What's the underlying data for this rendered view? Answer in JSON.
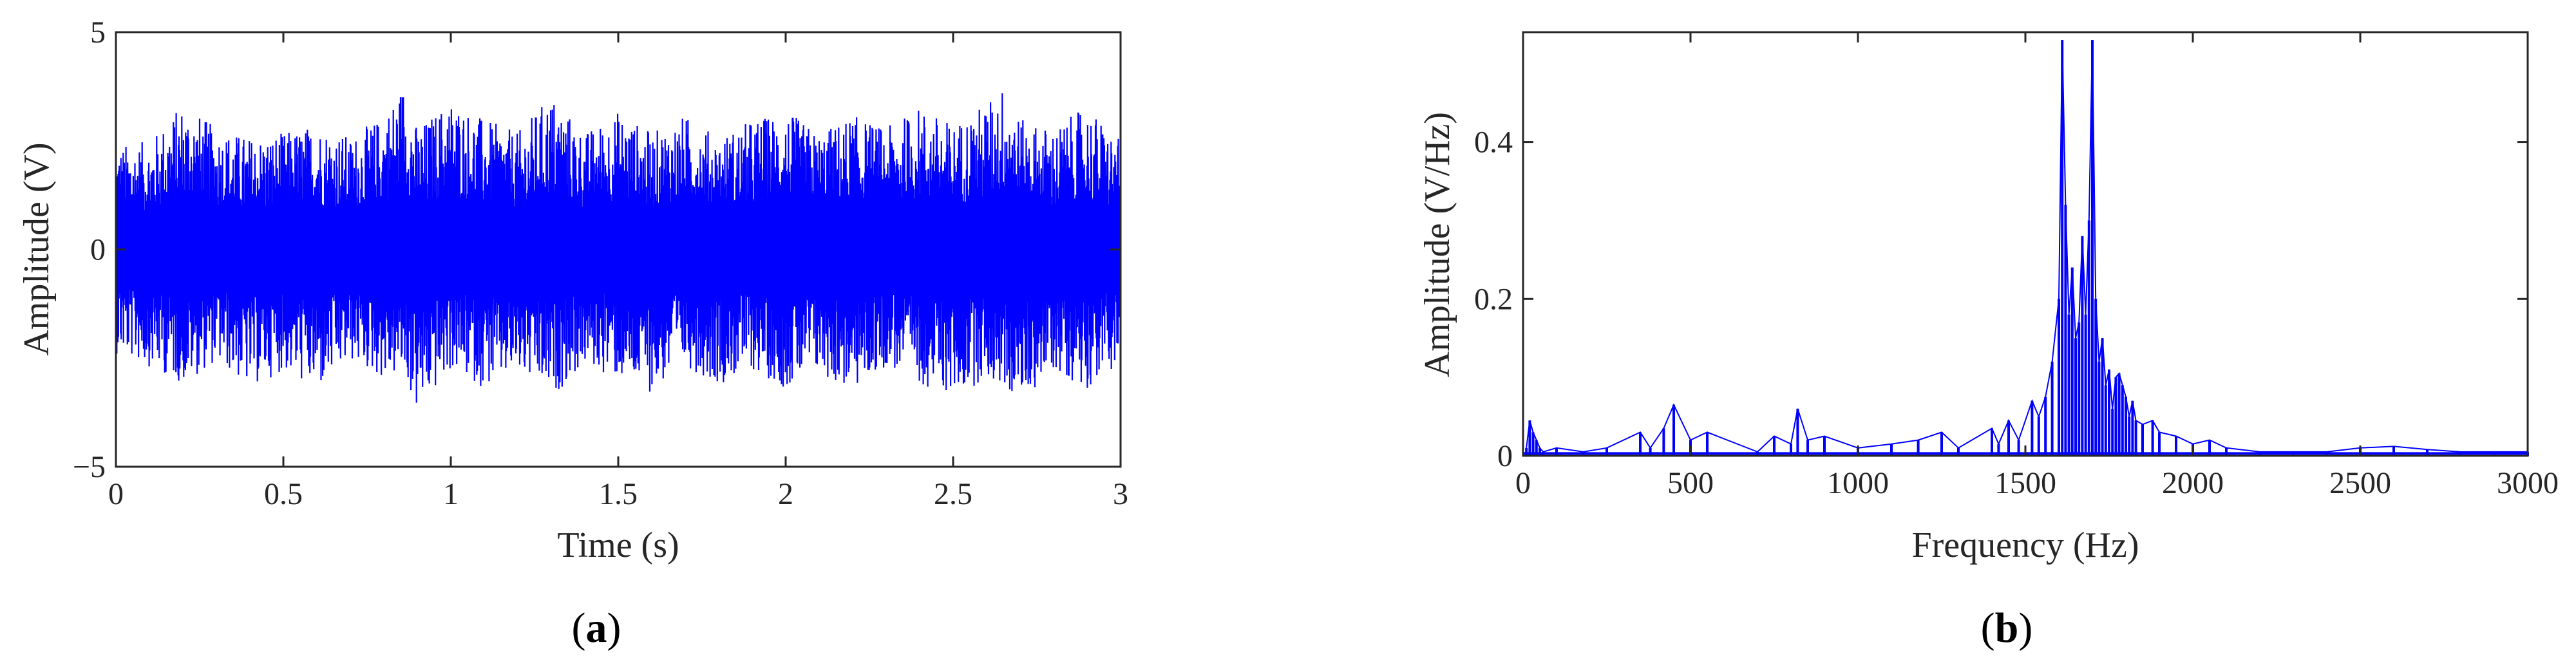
{
  "chart_data": [
    {
      "panel": "(a)",
      "panel_letter": "a",
      "type": "line",
      "xlabel": "Time (s)",
      "ylabel": "Amplitude (V)",
      "xlim": [
        0,
        3
      ],
      "ylim": [
        -5,
        5
      ],
      "xticks": [
        {
          "value": 0,
          "label": "0"
        },
        {
          "value": 0.5,
          "label": "0.5"
        },
        {
          "value": 1,
          "label": "1"
        },
        {
          "value": 1.5,
          "label": "1.5"
        },
        {
          "value": 2,
          "label": "2"
        },
        {
          "value": 2.5,
          "label": "2.5"
        },
        {
          "value": 3,
          "label": "3"
        }
      ],
      "yticks": [
        {
          "value": -5,
          "label": "−5"
        },
        {
          "value": 0,
          "label": "0"
        },
        {
          "value": 5,
          "label": "5"
        }
      ],
      "grid": false,
      "color": "#0000ff",
      "series": [
        {
          "x": [
            0,
            0.1,
            0.2,
            0.3,
            0.4,
            0.5,
            0.6,
            0.7,
            0.8,
            0.86,
            0.9,
            1.0,
            1.1,
            1.2,
            1.3,
            1.4,
            1.5,
            1.6,
            1.7,
            1.8,
            1.9,
            2.0,
            2.1,
            2.2,
            2.3,
            2.4,
            2.5,
            2.6,
            2.66,
            2.7,
            2.8,
            2.9,
            3.0
          ],
          "upper": [
            2.4,
            2.5,
            3.4,
            2.8,
            2.6,
            2.7,
            2.9,
            2.6,
            3.1,
            3.9,
            2.8,
            3.5,
            3.0,
            2.7,
            3.6,
            2.7,
            3.2,
            2.7,
            3.1,
            2.6,
            3.0,
            3.2,
            2.7,
            3.1,
            2.8,
            3.3,
            2.9,
            3.4,
            3.9,
            3.0,
            2.8,
            3.3,
            2.5
          ],
          "lower": [
            -2.4,
            -2.7,
            -3.1,
            -2.6,
            -3.2,
            -2.8,
            -3.3,
            -2.6,
            -3.0,
            -2.9,
            -3.8,
            -2.8,
            -3.2,
            -2.9,
            -3.4,
            -2.7,
            -3.0,
            -3.3,
            -2.7,
            -3.1,
            -2.8,
            -3.2,
            -2.9,
            -3.3,
            -2.7,
            -3.1,
            -3.4,
            -3.0,
            -3.3,
            -3.5,
            -2.8,
            -3.2,
            -2.6
          ]
        }
      ]
    },
    {
      "panel": "(b)",
      "panel_letter": "b",
      "type": "line",
      "xlabel": "Frequency (Hz)",
      "ylabel": "Amplitude (V/Hz)",
      "xlim": [
        0,
        3000
      ],
      "ylim": [
        0,
        0.54
      ],
      "xticks": [
        {
          "value": 0,
          "label": "0"
        },
        {
          "value": 500,
          "label": "500"
        },
        {
          "value": 1000,
          "label": "1000"
        },
        {
          "value": 1500,
          "label": "1500"
        },
        {
          "value": 2000,
          "label": "2000"
        },
        {
          "value": 2500,
          "label": "2500"
        },
        {
          "value": 3000,
          "label": "3000"
        }
      ],
      "yticks": [
        {
          "value": 0,
          "label": "0"
        },
        {
          "value": 0.2,
          "label": "0.2"
        },
        {
          "value": 0.4,
          "label": "0.4"
        }
      ],
      "grid": false,
      "color": "#0000ff",
      "series": [
        {
          "x": [
            10,
            20,
            30,
            40,
            50,
            60,
            100,
            180,
            250,
            350,
            380,
            420,
            450,
            500,
            550,
            700,
            750,
            800,
            820,
            850,
            900,
            1000,
            1100,
            1180,
            1250,
            1300,
            1400,
            1420,
            1450,
            1480,
            1520,
            1540,
            1560,
            1580,
            1600,
            1610,
            1620,
            1630,
            1640,
            1650,
            1660,
            1670,
            1680,
            1690,
            1700,
            1710,
            1720,
            1730,
            1740,
            1750,
            1760,
            1770,
            1780,
            1790,
            1800,
            1810,
            1820,
            1830,
            1850,
            1880,
            1900,
            1950,
            2000,
            2050,
            2100,
            2200,
            2300,
            2400,
            2500,
            2600,
            2700,
            2800,
            2900,
            3000
          ],
          "y": [
            0.01,
            0.045,
            0.03,
            0.02,
            0.01,
            0.005,
            0.01,
            0.005,
            0.01,
            0.03,
            0.01,
            0.035,
            0.065,
            0.02,
            0.03,
            0.005,
            0.025,
            0.015,
            0.06,
            0.02,
            0.025,
            0.01,
            0.015,
            0.02,
            0.03,
            0.01,
            0.035,
            0.015,
            0.045,
            0.02,
            0.07,
            0.05,
            0.075,
            0.12,
            0.2,
            0.53,
            0.32,
            0.18,
            0.24,
            0.15,
            0.17,
            0.28,
            0.18,
            0.3,
            0.53,
            0.2,
            0.12,
            0.15,
            0.09,
            0.11,
            0.06,
            0.1,
            0.105,
            0.09,
            0.075,
            0.05,
            0.07,
            0.045,
            0.04,
            0.045,
            0.03,
            0.025,
            0.015,
            0.02,
            0.01,
            0.005,
            0.005,
            0.005,
            0.01,
            0.012,
            0.008,
            0.005,
            0.005,
            0.005
          ]
        }
      ]
    }
  ]
}
